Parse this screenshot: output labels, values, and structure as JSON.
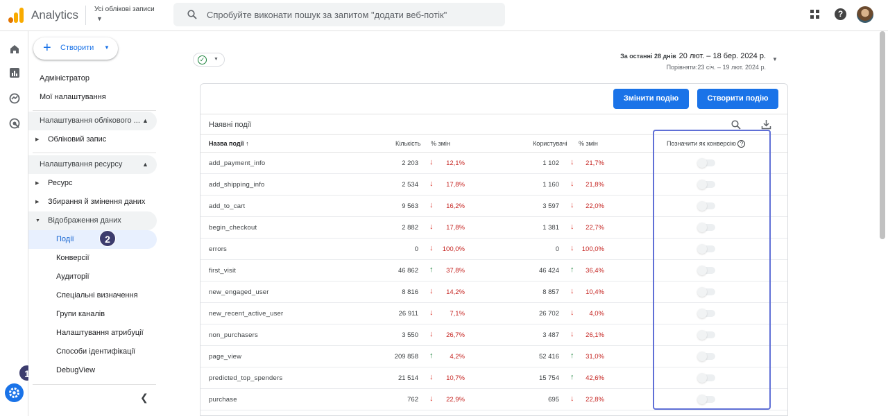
{
  "app": {
    "title": "Analytics",
    "account_label": "Усі облікові записи",
    "search_placeholder": "Спробуйте виконати пошук за запитом \"додати веб-потік\""
  },
  "sidebar": {
    "create_label": "Створити",
    "items": {
      "admin": "Адміністратор",
      "my_settings": "Мої налаштування",
      "account_settings": "Налаштування облікового ...",
      "account": "Обліковий запис",
      "property_settings": "Налаштування ресурсу",
      "property": "Ресурс",
      "data_collection": "Збирання й змінення даних",
      "data_display": "Відображення даних",
      "events": "Події",
      "conversions": "Конверсії",
      "audiences": "Аудиторії",
      "custom_definitions": "Спеціальні визначення",
      "channel_groups": "Групи каналів",
      "attribution_settings": "Налаштування атрибуції",
      "identification": "Способи ідентифікації",
      "debugview": "DebugView"
    }
  },
  "badges": {
    "one": "1",
    "two": "2"
  },
  "date_range": {
    "label": "За останні 28 днів",
    "value": "20 лют. – 18 бер. 2024 р.",
    "compare": "Порівняти:23 січ. – 19 лют. 2024 р."
  },
  "card": {
    "modify_button": "Змінити подію",
    "create_button": "Створити подію",
    "title": "Наявні події",
    "columns": {
      "event_name": "Назва події",
      "sort_arrow": "↑",
      "count": "Кількість",
      "count_change": "% змін",
      "users": "Користувачі",
      "users_change": "% змін",
      "mark_conversion": "Позначити як конверсію"
    }
  },
  "events": [
    {
      "name": "add_payment_info",
      "count": "2 203",
      "count_dir": "down",
      "count_pct": "12,1%",
      "users": "1 102",
      "users_dir": "down",
      "users_pct": "21,7%"
    },
    {
      "name": "add_shipping_info",
      "count": "2 534",
      "count_dir": "down",
      "count_pct": "17,8%",
      "users": "1 160",
      "users_dir": "down",
      "users_pct": "21,8%"
    },
    {
      "name": "add_to_cart",
      "count": "9 563",
      "count_dir": "down",
      "count_pct": "16,2%",
      "users": "3 597",
      "users_dir": "down",
      "users_pct": "22,0%"
    },
    {
      "name": "begin_checkout",
      "count": "2 882",
      "count_dir": "down",
      "count_pct": "17,8%",
      "users": "1 381",
      "users_dir": "down",
      "users_pct": "22,7%"
    },
    {
      "name": "errors",
      "count": "0",
      "count_dir": "down",
      "count_pct": "100,0%",
      "users": "0",
      "users_dir": "down",
      "users_pct": "100,0%"
    },
    {
      "name": "first_visit",
      "count": "46 862",
      "count_dir": "up",
      "count_pct": "37,8%",
      "users": "46 424",
      "users_dir": "up",
      "users_pct": "36,4%"
    },
    {
      "name": "new_engaged_user",
      "count": "8 816",
      "count_dir": "down",
      "count_pct": "14,2%",
      "users": "8 857",
      "users_dir": "down",
      "users_pct": "10,4%"
    },
    {
      "name": "new_recent_active_user",
      "count": "26 911",
      "count_dir": "down",
      "count_pct": "7,1%",
      "users": "26 702",
      "users_dir": "down",
      "users_pct": "4,0%"
    },
    {
      "name": "non_purchasers",
      "count": "3 550",
      "count_dir": "down",
      "count_pct": "26,7%",
      "users": "3 487",
      "users_dir": "down",
      "users_pct": "26,1%"
    },
    {
      "name": "page_view",
      "count": "209 858",
      "count_dir": "up",
      "count_pct": "4,2%",
      "users": "52 416",
      "users_dir": "up",
      "users_pct": "31,0%"
    },
    {
      "name": "predicted_top_spenders",
      "count": "21 514",
      "count_dir": "down",
      "count_pct": "10,7%",
      "users": "15 754",
      "users_dir": "up",
      "users_pct": "42,6%"
    },
    {
      "name": "purchase",
      "count": "762",
      "count_dir": "down",
      "count_pct": "22,9%",
      "users": "695",
      "users_dir": "down",
      "users_pct": "22,8%"
    }
  ],
  "colors": {
    "accent": "#1a73e8",
    "down": "#d93025",
    "up": "#188038",
    "highlight": "#5f6fd6"
  }
}
